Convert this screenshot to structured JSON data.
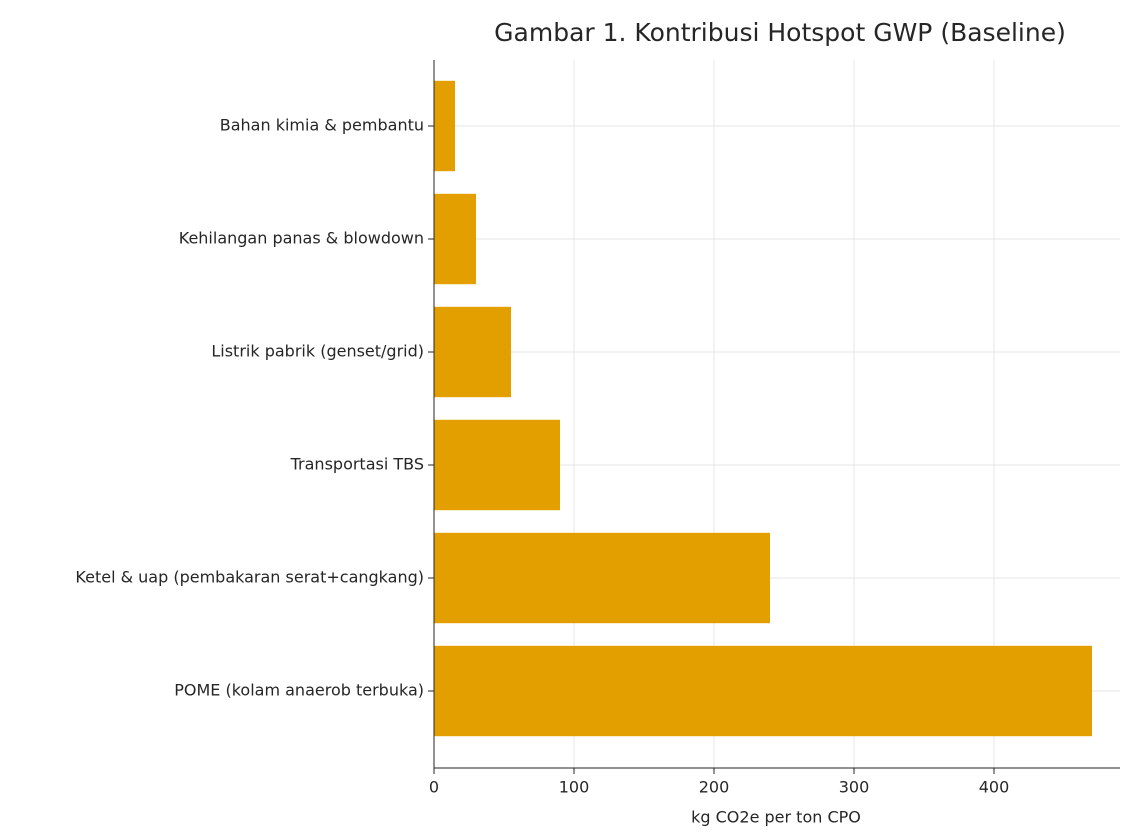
{
  "chart_data": {
    "type": "barh",
    "title": "Gambar 1. Kontribusi Hotspot GWP (Baseline)",
    "x_label": "kg CO2e per ton CPO",
    "categories": [
      "Bahan kimia & pembantu",
      "Kehilangan panas & blowdown",
      "Listrik pabrik (genset/grid)",
      "Transportasi TBS",
      "Ketel & uap (pembakaran serat+cangkang)",
      "POME (kolam anaerob terbuka)"
    ],
    "values": [
      15,
      30,
      55,
      90,
      240,
      470
    ],
    "color": "#e39f00",
    "xlim": [
      0,
      490
    ],
    "xticks": [
      0,
      100,
      200,
      300,
      400
    ],
    "grid": true
  }
}
